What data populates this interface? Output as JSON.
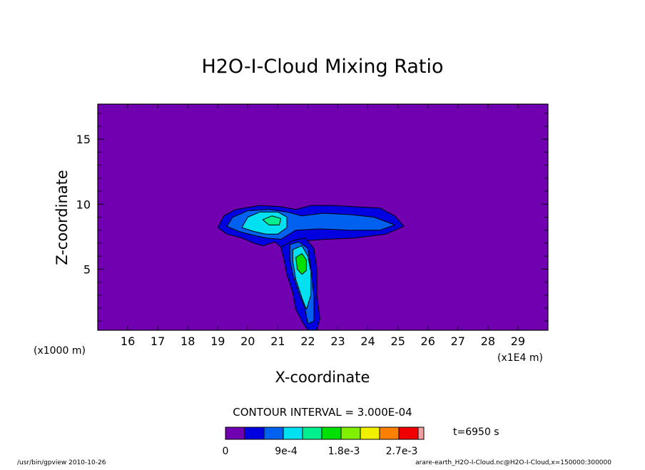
{
  "chart_data": {
    "type": "heatmap",
    "title": "H2O-I-Cloud Mixing Ratio",
    "xlabel": "X-coordinate",
    "ylabel": "Z-coordinate",
    "x_unit": "(x1E4 m)",
    "y_unit": "(x1000 m)",
    "x_ticks": [
      "16",
      "17",
      "18",
      "19",
      "20",
      "21",
      "22",
      "23",
      "24",
      "25",
      "26",
      "27",
      "28",
      "29"
    ],
    "y_ticks": [
      "5",
      "10",
      "15"
    ],
    "xlim": [
      15,
      30
    ],
    "ylim": [
      0.3,
      17.7
    ],
    "contour_interval": "CONTOUR INTERVAL = 3.000E-04",
    "time_label": "t=6950 s",
    "colorbar": {
      "colors": [
        "#7000b0",
        "#0000e0",
        "#0060f0",
        "#00e0f0",
        "#00f090",
        "#00e000",
        "#80f000",
        "#f0f000",
        "#ff8000",
        "#f00000",
        "#f0a0a0"
      ],
      "tick_labels": [
        "0",
        "9e-4",
        "1.8e-3",
        "2.7e-3"
      ]
    },
    "features": [
      {
        "level": 1,
        "description": "anvil outflow layer",
        "x_range": [
          19.0,
          25.2
        ],
        "z_range": [
          6.5,
          10.0
        ]
      },
      {
        "level": 3,
        "description": "anvil core",
        "x_range": [
          19.8,
          21.3
        ],
        "z_range": [
          7.5,
          9.9
        ]
      },
      {
        "level": 2,
        "description": "updraft column",
        "x_range": [
          21.3,
          22.4
        ],
        "z_range": [
          0.3,
          8.0
        ]
      },
      {
        "level": 5,
        "description": "updraft core",
        "x_range": [
          21.6,
          22.0
        ],
        "z_range": [
          4.8,
          6.2
        ]
      }
    ]
  },
  "footer": {
    "left": "/usr/bin/gpview   2010-10-26",
    "right": "arare-earth_H2O-I-Cloud.nc@H2O-I-Cloud,x=150000:300000"
  }
}
